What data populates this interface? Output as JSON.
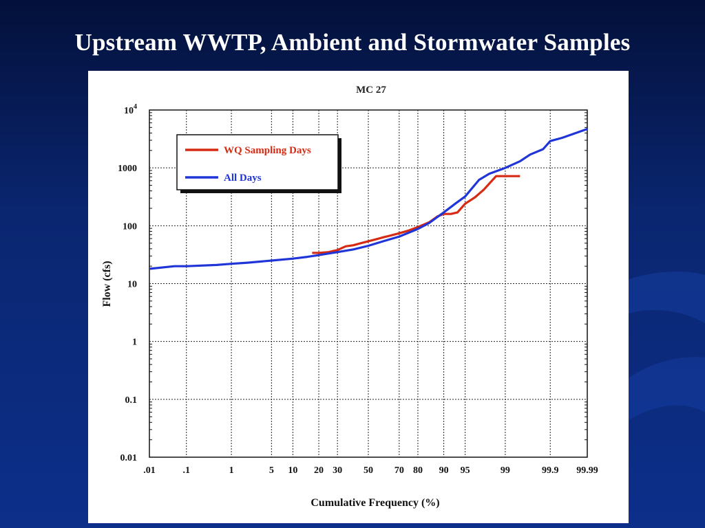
{
  "slide": {
    "title": "Upstream WWTP, Ambient and Stormwater Samples"
  },
  "colors": {
    "background": "#0a2670",
    "series_wq": "#d62a12",
    "series_all": "#1f35d8"
  },
  "chart_data": {
    "type": "line",
    "title": "MC 27",
    "xlabel": "Cumulative Frequency (%)",
    "ylabel": "Flow (cfs)",
    "x_scale": "normal-probability",
    "y_scale": "log",
    "xlim": [
      0.01,
      99.99
    ],
    "ylim": [
      0.01,
      10000
    ],
    "grid": true,
    "legend_position": "top-left",
    "x_ticks": [
      {
        "value": 0.01,
        "label": ".01"
      },
      {
        "value": 0.1,
        "label": ".1"
      },
      {
        "value": 1,
        "label": "1"
      },
      {
        "value": 5,
        "label": "5"
      },
      {
        "value": 10,
        "label": "10"
      },
      {
        "value": 20,
        "label": "20"
      },
      {
        "value": 30,
        "label": "30"
      },
      {
        "value": 50,
        "label": "50"
      },
      {
        "value": 70,
        "label": "70"
      },
      {
        "value": 80,
        "label": "80"
      },
      {
        "value": 90,
        "label": "90"
      },
      {
        "value": 95,
        "label": "95"
      },
      {
        "value": 99,
        "label": "99"
      },
      {
        "value": 99.9,
        "label": "99.9"
      },
      {
        "value": 99.99,
        "label": "99.99"
      }
    ],
    "y_ticks": [
      {
        "value": 0.01,
        "label": "0.01"
      },
      {
        "value": 0.1,
        "label": "0.1"
      },
      {
        "value": 1,
        "label": "1"
      },
      {
        "value": 10,
        "label": "10"
      },
      {
        "value": 100,
        "label": "100"
      },
      {
        "value": 1000,
        "label": "1000"
      },
      {
        "value": 10000,
        "label": "10",
        "sup": "4"
      }
    ],
    "series": [
      {
        "name": "WQ Sampling Days",
        "color": "#d62a12",
        "points": [
          {
            "x": 17,
            "y": 34
          },
          {
            "x": 20,
            "y": 34
          },
          {
            "x": 25,
            "y": 35
          },
          {
            "x": 30,
            "y": 38
          },
          {
            "x": 35,
            "y": 44
          },
          {
            "x": 40,
            "y": 46
          },
          {
            "x": 45,
            "y": 50
          },
          {
            "x": 50,
            "y": 54
          },
          {
            "x": 55,
            "y": 58
          },
          {
            "x": 60,
            "y": 63
          },
          {
            "x": 65,
            "y": 68
          },
          {
            "x": 70,
            "y": 74
          },
          {
            "x": 75,
            "y": 82
          },
          {
            "x": 80,
            "y": 95
          },
          {
            "x": 85,
            "y": 115
          },
          {
            "x": 88,
            "y": 145
          },
          {
            "x": 90,
            "y": 160
          },
          {
            "x": 92,
            "y": 160
          },
          {
            "x": 93.5,
            "y": 170
          },
          {
            "x": 95,
            "y": 240
          },
          {
            "x": 96.5,
            "y": 310
          },
          {
            "x": 97.5,
            "y": 420
          },
          {
            "x": 98.5,
            "y": 720
          },
          {
            "x": 99,
            "y": 720
          },
          {
            "x": 99.5,
            "y": 720
          }
        ]
      },
      {
        "name": "All Days",
        "color": "#1f35d8",
        "points": [
          {
            "x": 0.01,
            "y": 18
          },
          {
            "x": 0.05,
            "y": 20
          },
          {
            "x": 0.1,
            "y": 20
          },
          {
            "x": 0.5,
            "y": 21
          },
          {
            "x": 1,
            "y": 22
          },
          {
            "x": 2,
            "y": 23
          },
          {
            "x": 5,
            "y": 25
          },
          {
            "x": 10,
            "y": 27
          },
          {
            "x": 15,
            "y": 29
          },
          {
            "x": 20,
            "y": 31
          },
          {
            "x": 30,
            "y": 35
          },
          {
            "x": 40,
            "y": 39
          },
          {
            "x": 50,
            "y": 45
          },
          {
            "x": 60,
            "y": 54
          },
          {
            "x": 70,
            "y": 65
          },
          {
            "x": 80,
            "y": 88
          },
          {
            "x": 85,
            "y": 112
          },
          {
            "x": 90,
            "y": 170
          },
          {
            "x": 93,
            "y": 240
          },
          {
            "x": 95,
            "y": 320
          },
          {
            "x": 97,
            "y": 620
          },
          {
            "x": 98,
            "y": 790
          },
          {
            "x": 99,
            "y": 1000
          },
          {
            "x": 99.5,
            "y": 1300
          },
          {
            "x": 99.7,
            "y": 1700
          },
          {
            "x": 99.85,
            "y": 2100
          },
          {
            "x": 99.9,
            "y": 2900
          },
          {
            "x": 99.95,
            "y": 3300
          },
          {
            "x": 99.99,
            "y": 4700
          }
        ]
      }
    ]
  }
}
